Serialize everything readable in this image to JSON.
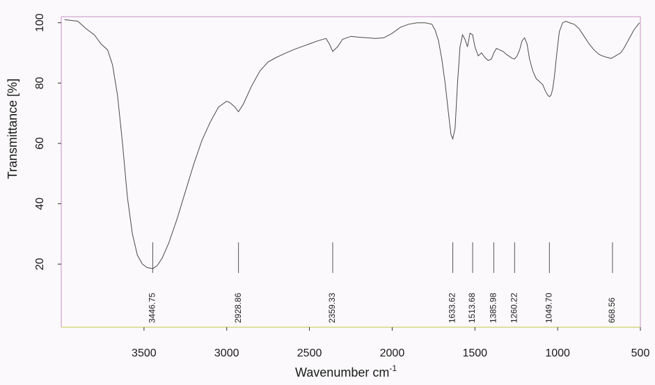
{
  "chart_data": {
    "type": "line",
    "xlabel": "Wavenumber cm",
    "xlabel_sup": "-1",
    "ylabel": "Transmittance [%]",
    "xlim": [
      4000,
      500
    ],
    "ylim": [
      0,
      102
    ],
    "x_ticks": [
      3500,
      3000,
      2500,
      2000,
      1500,
      1000,
      500
    ],
    "y_ticks": [
      20,
      40,
      60,
      80,
      100
    ],
    "series": [
      {
        "x": [
          3980,
          3900,
          3850,
          3800,
          3760,
          3720,
          3690,
          3660,
          3630,
          3600,
          3570,
          3540,
          3510,
          3480,
          3446.75,
          3420,
          3390,
          3350,
          3300,
          3250,
          3200,
          3150,
          3100,
          3050,
          3000,
          2980,
          2950,
          2928.86,
          2900,
          2850,
          2800,
          2750,
          2700,
          2650,
          2600,
          2550,
          2500,
          2450,
          2400,
          2380,
          2359.33,
          2330,
          2300,
          2250,
          2200,
          2150,
          2100,
          2050,
          2000,
          1950,
          1900,
          1850,
          1800,
          1760,
          1740,
          1720,
          1700,
          1680,
          1660,
          1645,
          1633.62,
          1620,
          1605,
          1590,
          1575,
          1560,
          1545,
          1530,
          1513.68,
          1500,
          1480,
          1460,
          1440,
          1420,
          1400,
          1385.98,
          1370,
          1350,
          1330,
          1310,
          1290,
          1275,
          1260.22,
          1245,
          1230,
          1215,
          1200,
          1185,
          1170,
          1150,
          1130,
          1110,
          1090,
          1075,
          1060,
          1049.7,
          1040,
          1030,
          1020,
          1005,
          990,
          970,
          950,
          920,
          900,
          870,
          840,
          810,
          780,
          750,
          720,
          700,
          680,
          668.56,
          650,
          620,
          600,
          580,
          560,
          540,
          520,
          505
        ],
        "y": [
          101,
          100.5,
          98,
          96,
          93,
          91,
          86,
          76,
          60,
          42,
          30,
          23,
          20,
          18.8,
          18.5,
          19.5,
          22,
          27,
          35,
          44,
          53,
          61,
          67,
          72,
          74,
          73.5,
          72,
          70.5,
          73,
          79,
          84,
          87,
          88.5,
          89.8,
          91,
          92,
          93,
          94,
          94.8,
          93,
          90.5,
          92,
          94.5,
          95.5,
          95.2,
          95,
          94.8,
          95,
          96.5,
          98.5,
          99.5,
          100,
          100,
          99.5,
          97.5,
          94,
          88,
          80,
          70,
          63,
          61.5,
          65,
          80,
          92,
          96,
          94.5,
          92,
          96.5,
          96,
          92,
          89,
          90,
          88.5,
          87.5,
          88,
          90,
          91.5,
          91,
          90.5,
          89.5,
          88.8,
          88.2,
          88,
          89,
          91,
          94,
          95,
          93,
          88,
          84,
          81.5,
          80.5,
          79.5,
          77.5,
          76,
          75.5,
          76,
          78,
          82,
          90,
          97,
          100,
          100.5,
          99.8,
          99.5,
          98,
          95.5,
          93,
          91,
          89.5,
          88.8,
          88.5,
          88.2,
          88.4,
          89,
          90,
          91.5,
          93.5,
          95.5,
          97.5,
          99,
          100
        ]
      }
    ],
    "peak_labels": [
      {
        "label": "3446.75",
        "x": 3446.75
      },
      {
        "label": "2928.86",
        "x": 2928.86
      },
      {
        "label": "2359.33",
        "x": 2359.33
      },
      {
        "label": "1633.62",
        "x": 1633.62
      },
      {
        "label": "1513.68",
        "x": 1513.68
      },
      {
        "label": "1385.98",
        "x": 1385.98
      },
      {
        "label": "1260.22",
        "x": 1260.22
      },
      {
        "label": "1049.70",
        "x": 1049.7
      },
      {
        "label": "668.56",
        "x": 668.56
      }
    ],
    "grid": false,
    "colors": {
      "frame": "#c890c4",
      "baseline": "#d6d884",
      "line": "#4a4a4a",
      "peak_marker": "#555555"
    }
  }
}
